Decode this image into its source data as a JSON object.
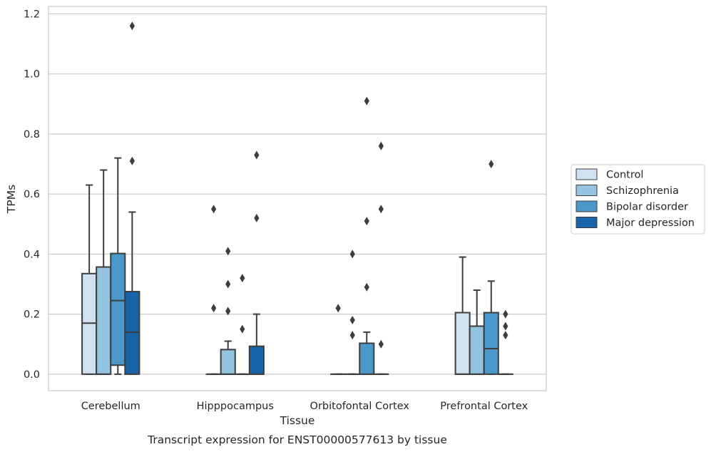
{
  "chart_data": {
    "type": "box",
    "title": "Transcript expression for ENST00000577613 by tissue",
    "xlabel": "Tissue",
    "ylabel": "TPMs",
    "ylim": [
      -0.055,
      1.225
    ],
    "yticks": [
      0.0,
      0.2,
      0.4,
      0.6,
      0.8,
      1.0,
      1.2
    ],
    "ytick_labels": [
      "0.0",
      "0.2",
      "0.4",
      "0.6",
      "0.8",
      "1.0",
      "1.2"
    ],
    "grid": "horizontal",
    "legend_position": "right",
    "categories": [
      "Cerebellum",
      "Hipppocampus",
      "Orbitofontal Cortex",
      "Prefrontal Cortex"
    ],
    "series": [
      {
        "name": "Control",
        "color": "#d0e1f2",
        "boxes": [
          {
            "q1": 0.0,
            "median": 0.17,
            "q3": 0.335,
            "whislo": 0.0,
            "whishi": 0.63,
            "fliers": []
          },
          {
            "q1": 0.0,
            "median": 0.0,
            "q3": 0.0,
            "whislo": 0.0,
            "whishi": 0.0,
            "fliers": [
              0.55,
              0.22
            ]
          },
          {
            "q1": 0.0,
            "median": 0.0,
            "q3": 0.0,
            "whislo": 0.0,
            "whishi": 0.0,
            "fliers": [
              0.22
            ]
          },
          {
            "q1": 0.0,
            "median": 0.0,
            "q3": 0.205,
            "whislo": 0.0,
            "whishi": 0.39,
            "fliers": []
          }
        ]
      },
      {
        "name": "Schizophrenia",
        "color": "#94c4df",
        "boxes": [
          {
            "q1": 0.0,
            "median": 0.0,
            "q3": 0.357,
            "whislo": 0.0,
            "whishi": 0.68,
            "fliers": []
          },
          {
            "q1": 0.0,
            "median": 0.0,
            "q3": 0.082,
            "whislo": 0.0,
            "whishi": 0.11,
            "fliers": [
              0.41,
              0.3,
              0.21
            ]
          },
          {
            "q1": 0.0,
            "median": 0.0,
            "q3": 0.0,
            "whislo": 0.0,
            "whishi": 0.0,
            "fliers": [
              0.4,
              0.18,
              0.13
            ]
          },
          {
            "q1": 0.0,
            "median": 0.0,
            "q3": 0.16,
            "whislo": 0.0,
            "whishi": 0.28,
            "fliers": []
          }
        ]
      },
      {
        "name": "Bipolar disorder",
        "color": "#4a98c9",
        "boxes": [
          {
            "q1": 0.03,
            "median": 0.245,
            "q3": 0.402,
            "whislo": 0.0,
            "whishi": 0.72,
            "fliers": []
          },
          {
            "q1": 0.0,
            "median": 0.0,
            "q3": 0.0,
            "whislo": 0.0,
            "whishi": 0.0,
            "fliers": [
              0.32,
              0.15
            ]
          },
          {
            "q1": 0.0,
            "median": 0.0,
            "q3": 0.103,
            "whislo": 0.0,
            "whishi": 0.14,
            "fliers": [
              0.91,
              0.51,
              0.29
            ]
          },
          {
            "q1": 0.0,
            "median": 0.085,
            "q3": 0.205,
            "whislo": 0.0,
            "whishi": 0.31,
            "fliers": [
              0.7
            ]
          }
        ]
      },
      {
        "name": "Major depression",
        "color": "#1764ab",
        "boxes": [
          {
            "q1": 0.0,
            "median": 0.14,
            "q3": 0.275,
            "whislo": 0.0,
            "whishi": 0.54,
            "fliers": [
              1.16,
              0.71
            ]
          },
          {
            "q1": 0.0,
            "median": 0.0,
            "q3": 0.093,
            "whislo": 0.0,
            "whishi": 0.2,
            "fliers": [
              0.73,
              0.52
            ]
          },
          {
            "q1": 0.0,
            "median": 0.0,
            "q3": 0.0,
            "whislo": 0.0,
            "whishi": 0.0,
            "fliers": [
              0.76,
              0.55,
              0.1
            ]
          },
          {
            "q1": 0.0,
            "median": 0.0,
            "q3": 0.0,
            "whislo": 0.0,
            "whishi": 0.0,
            "fliers": [
              0.2,
              0.16,
              0.13
            ]
          }
        ]
      }
    ]
  }
}
